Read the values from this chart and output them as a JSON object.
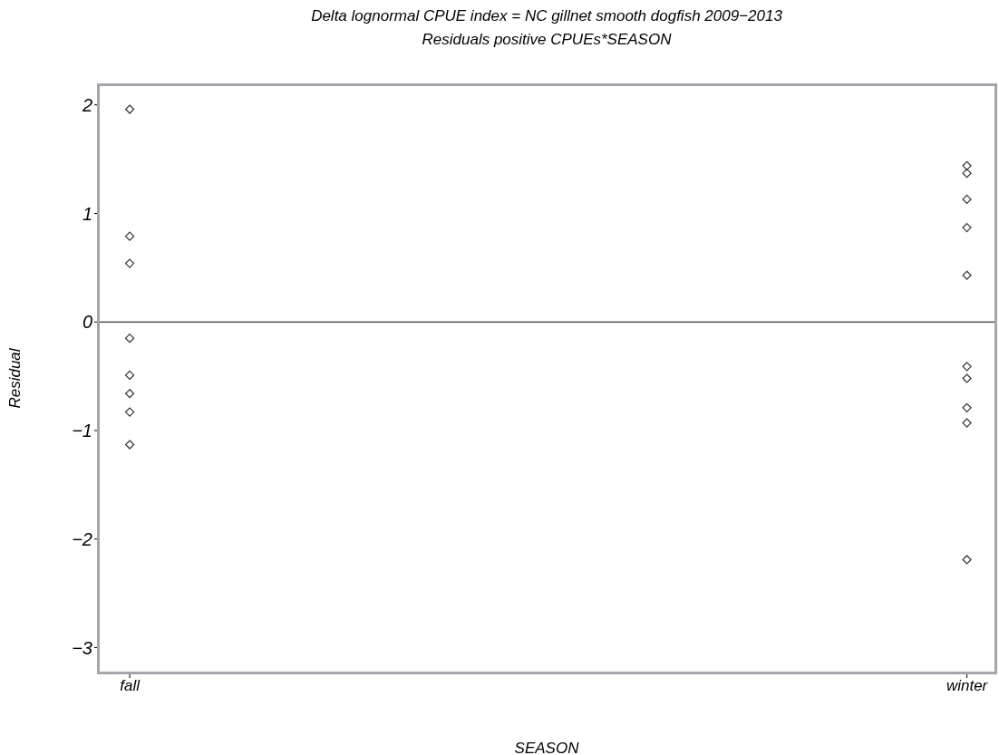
{
  "chart_data": {
    "type": "scatter",
    "title": "Delta lognormal CPUE index = NC gillnet smooth dogfish 2009−2013",
    "subtitle": "Residuals positive CPUEs*SEASON",
    "xlabel": "SEASON",
    "ylabel": "Residual",
    "categories": [
      "fall",
      "winter"
    ],
    "series": [
      {
        "color": "#333333",
        "x": [
          "fall",
          "fall",
          "fall",
          "fall",
          "fall",
          "fall",
          "fall",
          "fall",
          "winter",
          "winter",
          "winter",
          "winter",
          "winter",
          "winter",
          "winter",
          "winter",
          "winter",
          "winter"
        ],
        "values": [
          1.96,
          0.79,
          0.54,
          -0.15,
          -0.49,
          -0.66,
          -0.83,
          -1.13,
          1.44,
          1.37,
          1.13,
          0.87,
          0.43,
          -0.41,
          -0.52,
          -0.79,
          -0.93,
          -2.19
        ]
      }
    ],
    "ylim": [
      -3.23,
      2.19
    ],
    "yticks": [
      {
        "value": -3,
        "label": "−3"
      },
      {
        "value": -2,
        "label": "−2"
      },
      {
        "value": -1,
        "label": "−1"
      },
      0,
      1,
      2
    ],
    "ref_lines": [
      {
        "axis": "y",
        "value": 0,
        "color": "#000000"
      }
    ],
    "marker": "diamond",
    "grid": false,
    "legend": false
  }
}
